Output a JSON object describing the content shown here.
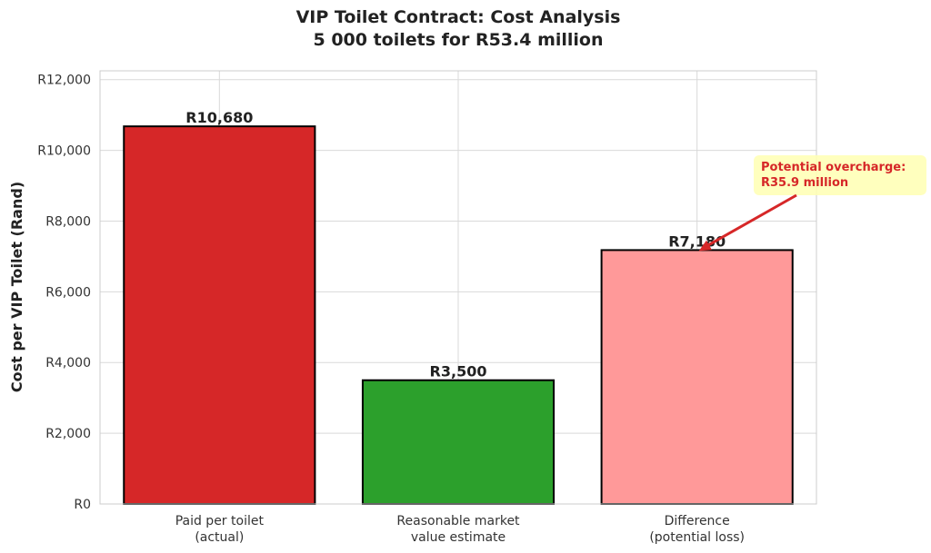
{
  "chart_data": {
    "type": "bar",
    "title": "VIP Toilet Contract: Cost Analysis",
    "subtitle": "5 000 toilets for R53.4 million",
    "xlabel": "",
    "ylabel": "Cost per VIP Toilet (Rand)",
    "ylim": [
      0,
      12250
    ],
    "yticks": [
      0,
      2000,
      4000,
      6000,
      8000,
      10000,
      12000
    ],
    "ytick_labels": [
      "R0",
      "R2,000",
      "R4,000",
      "R6,000",
      "R8,000",
      "R10,000",
      "R12,000"
    ],
    "categories": [
      [
        "Paid per toilet",
        "(actual)"
      ],
      [
        "Reasonable market",
        "value estimate"
      ],
      [
        "Difference",
        "(potential loss)"
      ]
    ],
    "values": [
      10680,
      3500,
      7180
    ],
    "value_labels": [
      "R10,680",
      "R3,500",
      "R7,180"
    ],
    "colors": [
      "#d62728",
      "#2ca02c",
      "#ff9999"
    ],
    "grid": true,
    "annotation": {
      "text": [
        "Potential overcharge:",
        "R35.9 million"
      ],
      "target_index": 2,
      "text_color": "#d62728",
      "box_color": "#ffffb3",
      "arrow_color": "#d62728"
    }
  }
}
